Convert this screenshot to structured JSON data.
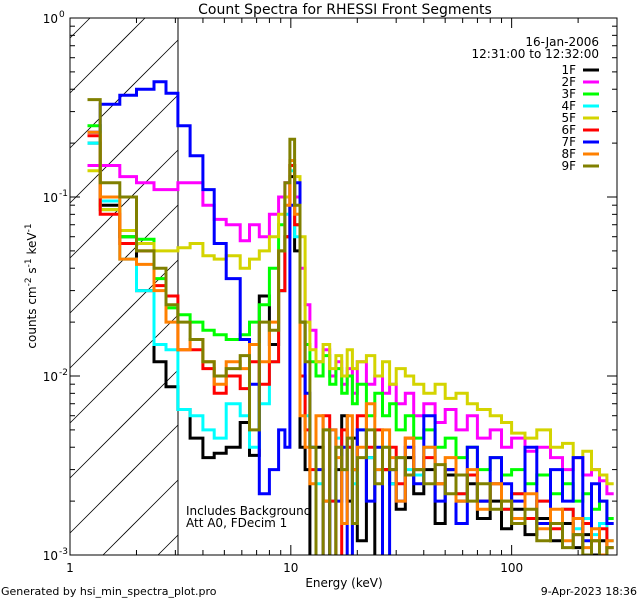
{
  "chart_data": {
    "type": "line",
    "title": "Count Spectra for RHESSI Front Segments",
    "xlabel": "Energy (keV)",
    "ylabel": {
      "base": "counts cm",
      "e1": "-2",
      "s": " s",
      "e2": "-1",
      "k": " keV",
      "e3": "-1"
    },
    "xscale": "log",
    "yscale": "log",
    "xlim": [
      1,
      300
    ],
    "ylim": [
      0.001,
      1
    ],
    "x_ticks": [
      {
        "value": 1,
        "label": "1"
      },
      {
        "value": 10,
        "label": "10"
      },
      {
        "value": 100,
        "label": "100"
      }
    ],
    "y_ticks": [
      {
        "value": 1,
        "base": "10",
        "exp": "0"
      },
      {
        "value": 0.1,
        "base": "10",
        "exp": "-1"
      },
      {
        "value": 0.01,
        "base": "10",
        "exp": "-2"
      },
      {
        "value": 0.001,
        "base": "10",
        "exp": "-3"
      }
    ],
    "legend_placement": "top-right",
    "date": "16-Jan-2006",
    "time_range": "12:31:00 to 12:32:00",
    "annotations": [
      "Includes Background",
      "Att A0, FDecim 1"
    ],
    "hatched_region_keV": [
      1,
      3.08
    ],
    "energy_edges_keV": [
      1.2,
      1.37,
      1.68,
      2.0,
      2.4,
      2.72,
      3.08,
      3.5,
      4.0,
      4.5,
      5.1,
      5.9,
      6.5,
      7.2,
      8.0,
      8.8,
      9.4,
      9.9,
      10.4,
      11.0,
      11.6,
      12.2,
      13,
      14,
      15,
      16,
      17,
      18,
      19,
      20,
      22,
      24,
      26,
      28,
      30,
      33,
      36,
      40,
      45,
      50,
      56,
      63,
      70,
      80,
      90,
      100,
      115,
      130,
      150,
      170,
      190,
      210,
      230,
      250,
      270,
      290
    ],
    "series": [
      {
        "name": "1F",
        "color": "#000000",
        "values": [
          0.2,
          0.09,
          0.06,
          0.03,
          0.012,
          0.0087,
          0.0065,
          0.0045,
          0.0035,
          0.0037,
          0.004,
          0.0055,
          0.0036,
          0.028,
          0.015,
          0.03,
          0.06,
          0.13,
          0.05,
          0.004,
          0.003,
          0.0009,
          0.004,
          0.002,
          0.0008,
          0.003,
          0.006,
          0.002,
          0.0045,
          0.0012,
          0.0035,
          0.0009,
          0.003,
          0.0025,
          0.0018,
          0.0035,
          0.0022,
          0.003,
          0.0015,
          0.0028,
          0.002,
          0.0025,
          0.0016,
          0.002,
          0.0014,
          0.0018,
          0.0013,
          0.0016,
          0.0012,
          0.0015,
          0.0011,
          0.0013,
          0.001,
          0.0012,
          0.0009
        ]
      },
      {
        "name": "2F",
        "color": "#ff00ff",
        "values": [
          0.15,
          0.15,
          0.13,
          0.12,
          0.11,
          0.11,
          0.12,
          0.12,
          0.09,
          0.075,
          0.07,
          0.057,
          0.07,
          0.06,
          0.08,
          0.1,
          0.12,
          0.15,
          0.1,
          0.04,
          0.025,
          0.018,
          0.012,
          0.014,
          0.01,
          0.012,
          0.009,
          0.011,
          0.008,
          0.012,
          0.009,
          0.01,
          0.008,
          0.009,
          0.007,
          0.008,
          0.006,
          0.007,
          0.0055,
          0.0065,
          0.005,
          0.006,
          0.0045,
          0.005,
          0.004,
          0.0045,
          0.0038,
          0.004,
          0.0035,
          0.003,
          0.0035,
          0.0028,
          0.003,
          0.0026,
          0.0022
        ]
      },
      {
        "name": "3F",
        "color": "#00ff00",
        "values": [
          0.25,
          0.085,
          0.06,
          0.058,
          0.035,
          0.024,
          0.022,
          0.02,
          0.018,
          0.017,
          0.016,
          0.017,
          0.02,
          0.025,
          0.04,
          0.07,
          0.1,
          0.15,
          0.07,
          0.02,
          0.015,
          0.012,
          0.01,
          0.013,
          0.009,
          0.011,
          0.008,
          0.01,
          0.007,
          0.009,
          0.006,
          0.008,
          0.006,
          0.007,
          0.005,
          0.006,
          0.0045,
          0.005,
          0.004,
          0.0045,
          0.0035,
          0.004,
          0.003,
          0.0035,
          0.0028,
          0.003,
          0.0025,
          0.0028,
          0.0022,
          0.0025,
          0.002,
          0.0022,
          0.0018,
          0.002,
          0.0016
        ]
      },
      {
        "name": "4F",
        "color": "#00ffff",
        "values": [
          0.2,
          0.095,
          0.045,
          0.03,
          0.015,
          0.014,
          0.0065,
          0.006,
          0.005,
          0.0045,
          0.007,
          0.006,
          0.004,
          0.007,
          0.012,
          0.03,
          0.08,
          0.14,
          0.06,
          0.01,
          0.006,
          0.004,
          0.0025,
          0.005,
          0.002,
          0.0045,
          0.003,
          0.004,
          0.0025,
          0.005,
          0.0035,
          0.003,
          0.004,
          0.0025,
          0.0035,
          0.003,
          0.0028,
          0.004,
          0.0025,
          0.003,
          0.0022,
          0.0028,
          0.002,
          0.0025,
          0.0018,
          0.0022,
          0.0016,
          0.002,
          0.0015,
          0.0018,
          0.0014,
          0.0016,
          0.0013,
          0.0015,
          0.0012
        ]
      },
      {
        "name": "5F",
        "color": "#d4d400",
        "values": [
          0.14,
          0.085,
          0.065,
          0.055,
          0.05,
          0.05,
          0.052,
          0.055,
          0.047,
          0.045,
          0.047,
          0.04,
          0.045,
          0.05,
          0.06,
          0.08,
          0.1,
          0.15,
          0.13,
          0.06,
          0.02,
          0.014,
          0.012,
          0.015,
          0.011,
          0.013,
          0.01,
          0.014,
          0.011,
          0.012,
          0.013,
          0.01,
          0.012,
          0.009,
          0.011,
          0.01,
          0.009,
          0.008,
          0.009,
          0.0075,
          0.008,
          0.007,
          0.0065,
          0.006,
          0.0055,
          0.0048,
          0.0045,
          0.005,
          0.004,
          0.0042,
          0.0035,
          0.0038,
          0.003,
          0.0028,
          0.0025
        ]
      },
      {
        "name": "6F",
        "color": "#ff0000",
        "values": [
          0.22,
          0.08,
          0.055,
          0.05,
          0.032,
          0.028,
          0.014,
          0.014,
          0.011,
          0.008,
          0.01,
          0.0085,
          0.012,
          0.009,
          0.012,
          0.03,
          0.06,
          0.15,
          0.07,
          0.01,
          0.005,
          0.003,
          0.0009,
          0.006,
          0.002,
          0.0008,
          0.005,
          0.004,
          0.003,
          0.006,
          0.004,
          0.005,
          0.003,
          0.004,
          0.0025,
          0.0045,
          0.003,
          0.0035,
          0.0025,
          0.003,
          0.0022,
          0.0028,
          0.002,
          0.0025,
          0.0018,
          0.0022,
          0.0016,
          0.002,
          0.0014,
          0.0018,
          0.0013,
          0.0015,
          0.0012,
          0.0014,
          0.0011
        ]
      },
      {
        "name": "7F",
        "color": "#0000ff",
        "values": [
          0.23,
          0.33,
          0.37,
          0.4,
          0.44,
          0.38,
          0.25,
          0.17,
          0.11,
          0.055,
          0.035,
          0.016,
          0.009,
          0.0022,
          0.003,
          0.005,
          0.004,
          0.09,
          0.12,
          0.02,
          0.008,
          0.004,
          0.003,
          0.0009,
          0.005,
          0.002,
          0.004,
          0.0008,
          0.003,
          0.005,
          0.002,
          0.004,
          0.0008,
          0.003,
          0.002,
          0.004,
          0.0025,
          0.006,
          0.002,
          0.003,
          0.0015,
          0.004,
          0.002,
          0.0035,
          0.0025,
          0.002,
          0.004,
          0.0015,
          0.003,
          0.002,
          0.0035,
          0.0012,
          0.0025,
          0.002,
          0.0015
        ]
      },
      {
        "name": "8F",
        "color": "#ff8000",
        "values": [
          0.23,
          0.1,
          0.045,
          0.042,
          0.03,
          0.02,
          0.014,
          0.016,
          0.012,
          0.009,
          0.012,
          0.011,
          0.015,
          0.012,
          0.02,
          0.05,
          0.09,
          0.16,
          0.08,
          0.006,
          0.004,
          0.0025,
          0.006,
          0.002,
          0.005,
          0.0035,
          0.0015,
          0.006,
          0.003,
          0.004,
          0.007,
          0.003,
          0.005,
          0.0035,
          0.002,
          0.0045,
          0.003,
          0.004,
          0.0025,
          0.0035,
          0.002,
          0.003,
          0.0018,
          0.0025,
          0.002,
          0.0016,
          0.0022,
          0.0014,
          0.0018,
          0.0012,
          0.0016,
          0.0011,
          0.0014,
          0.001,
          0.0012
        ]
      },
      {
        "name": "9F",
        "color": "#808000",
        "values": [
          0.35,
          0.12,
          0.1,
          0.05,
          0.04,
          0.025,
          0.02,
          0.016,
          0.012,
          0.01,
          0.011,
          0.013,
          0.005,
          0.02,
          0.018,
          0.05,
          0.12,
          0.21,
          0.09,
          0.02,
          0.012,
          0.004,
          0.0008,
          0.005,
          0.0009,
          0.004,
          0.003,
          0.0045,
          0.0015,
          0.0035,
          0.005,
          0.0025,
          0.004,
          0.003,
          0.0035,
          0.0028,
          0.003,
          0.0025,
          0.0032,
          0.0022,
          0.0028,
          0.002,
          0.0025,
          0.0018,
          0.002,
          0.0015,
          0.0018,
          0.0012,
          0.0015,
          0.0011,
          0.0013,
          0.001,
          0.0012,
          0.0009,
          0.0011
        ]
      }
    ]
  },
  "footer": {
    "generated_by": "Generated by hsi_min_spectra_plot.pro",
    "timestamp": "9-Apr-2023 18:36"
  }
}
